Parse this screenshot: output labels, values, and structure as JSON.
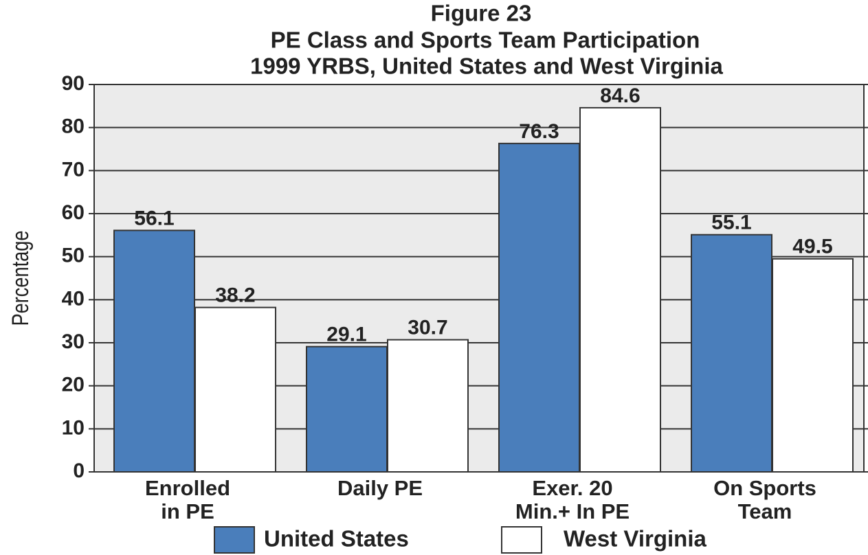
{
  "chart_data": {
    "type": "bar",
    "title": [
      "Figure 23",
      "PE Class and Sports Team Participation",
      "1999 YRBS, United States and West Virginia"
    ],
    "y_label": "Percentage",
    "categories": [
      [
        "Enrolled",
        "in PE"
      ],
      [
        "Daily PE"
      ],
      [
        "Exer. 20",
        "Min.+ In PE"
      ],
      [
        "On Sports",
        "Team"
      ]
    ],
    "series": [
      {
        "name": "United States",
        "color": "#4a7ebb",
        "values": [
          56.1,
          29.1,
          76.3,
          55.1
        ]
      },
      {
        "name": "West Virginia",
        "color": "#ffffff",
        "values": [
          38.2,
          30.7,
          84.6,
          49.5
        ]
      }
    ],
    "ylim": [
      0,
      90
    ],
    "yticks": [
      0,
      10,
      20,
      30,
      40,
      50,
      60,
      70,
      80,
      90
    ],
    "grid": true
  }
}
